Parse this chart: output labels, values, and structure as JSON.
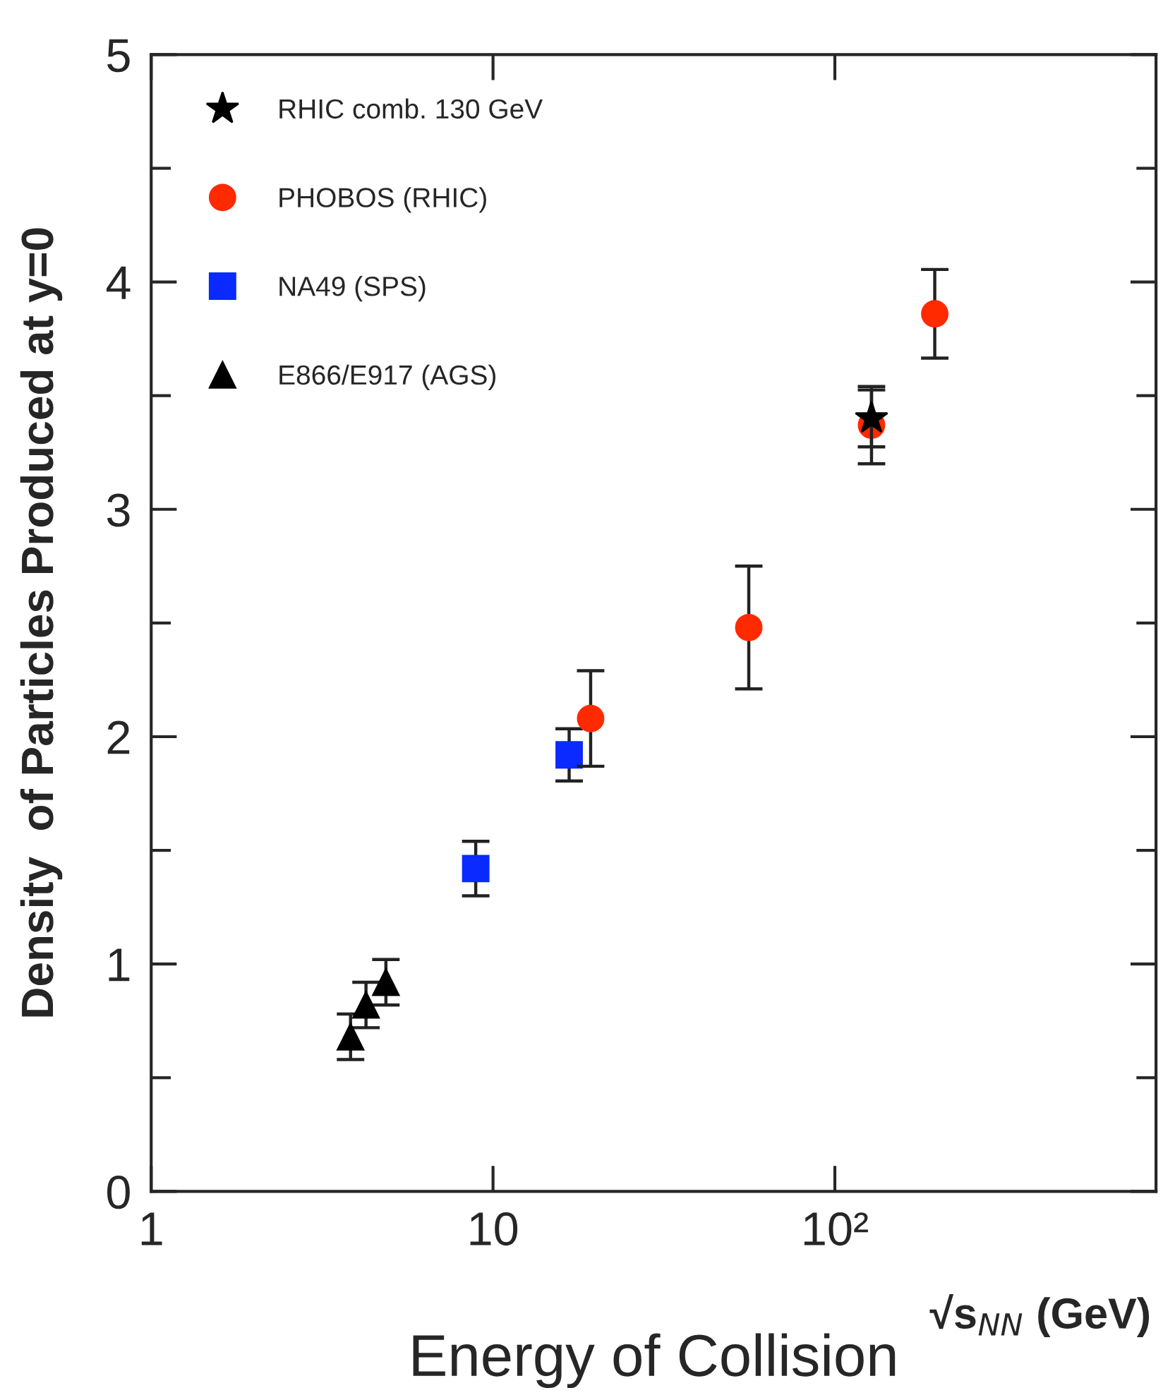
{
  "chart_data": {
    "type": "scatter",
    "ylabel": "Density  of Particles Produced at y=0",
    "xlabel": "Energy of Collision",
    "annotations": [
      "√s$_{NN}$ (GeV)"
    ],
    "log": "x",
    "xlim": [
      1,
      870
    ],
    "xticks": [
      1,
      10,
      {
        "value": 100,
        "label": "10²"
      }
    ],
    "ylim": [
      0,
      5
    ],
    "yticks": [
      0,
      1,
      2,
      3,
      4,
      5
    ],
    "legend": "top left",
    "grid": false,
    "series": [
      {
        "name": "RHIC comb. 130 GeV",
        "color": "#000000",
        "marker": "star",
        "x": [
          128
        ],
        "values": [
          3.4
        ],
        "errors": [
          0.125
        ]
      },
      {
        "name": "PHOBOS (RHIC)",
        "color": "#ff2a00",
        "marker": "circle",
        "x": [
          19.3,
          56,
          128,
          196
        ],
        "values": [
          2.08,
          2.48,
          3.37,
          3.86
        ],
        "errors": [
          0.21,
          0.27,
          0.17,
          0.195
        ]
      },
      {
        "name": "NA49 (SPS)",
        "color": "#0a2aff",
        "marker": "square",
        "x": [
          8.9,
          16.7
        ],
        "values": [
          1.42,
          1.92
        ],
        "errors": [
          0.12,
          0.115
        ]
      },
      {
        "name": "E866/E917 (AGS)",
        "color": "#000000",
        "marker": "triangle",
        "x": [
          3.83,
          4.25,
          4.86
        ],
        "values": [
          0.68,
          0.82,
          0.92
        ],
        "errors": [
          0.1,
          0.1,
          0.1
        ]
      }
    ]
  }
}
